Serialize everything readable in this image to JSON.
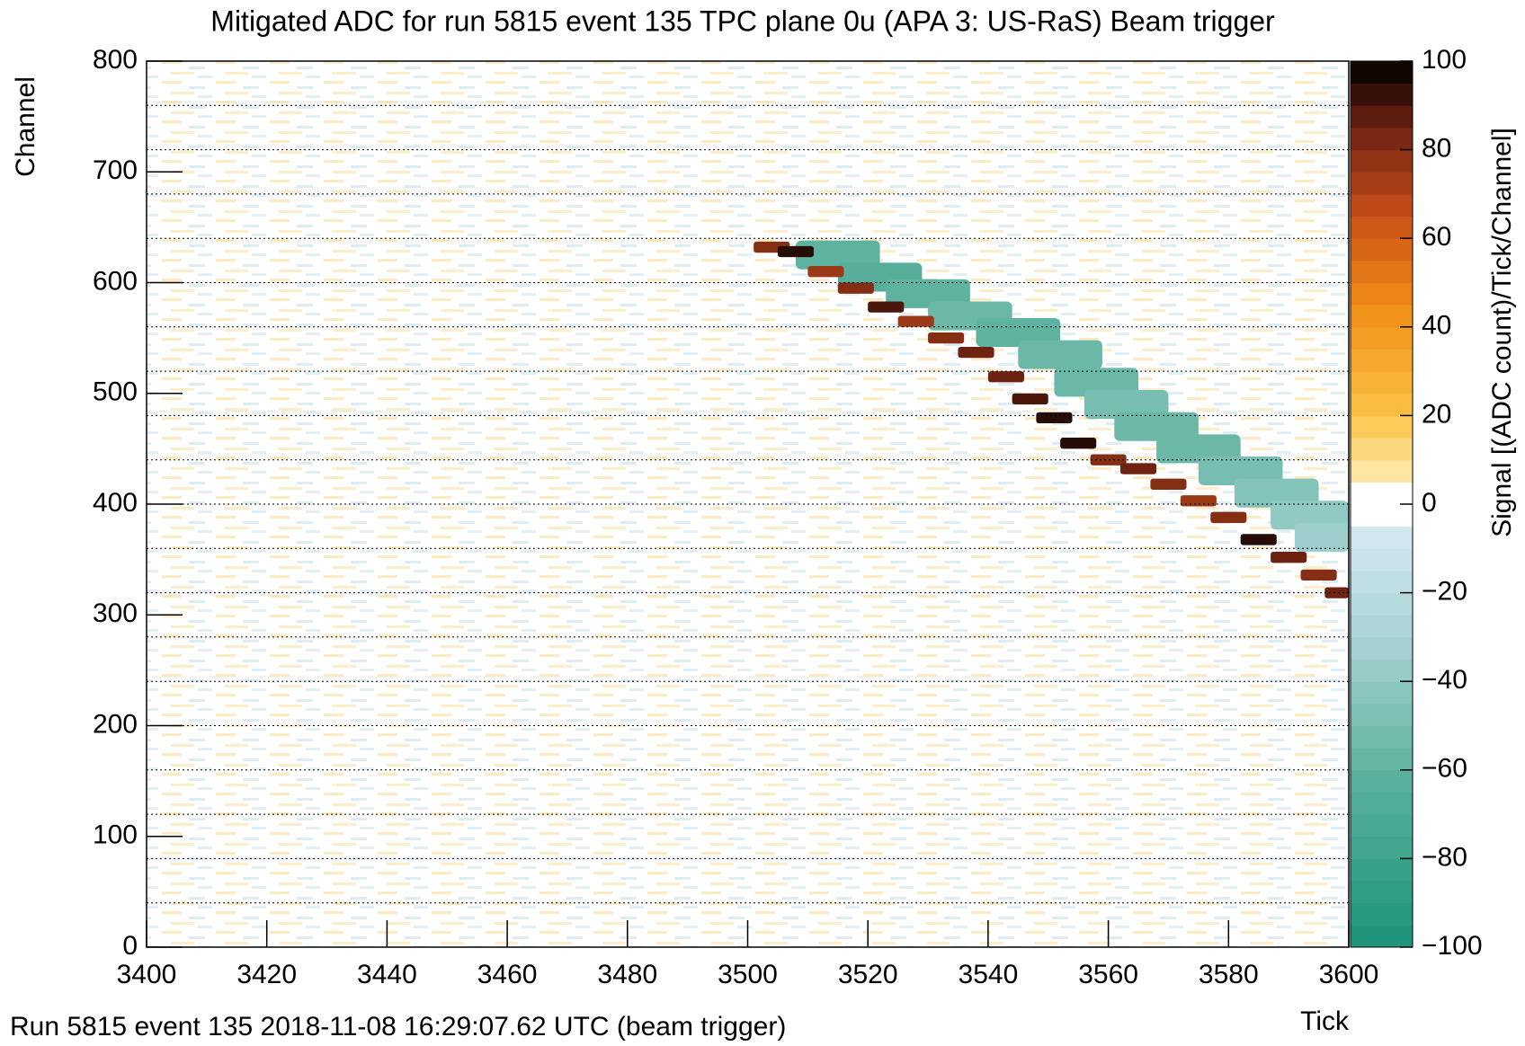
{
  "chart_data": {
    "type": "heatmap",
    "title": "Mitigated ADC for run 5815 event 135 TPC plane 0u (APA 3: US-RaS) Beam trigger",
    "xlabel": "Tick",
    "ylabel": "Channel",
    "zlabel": "Signal [(ADC count)/Tick/Channel]",
    "footer": "Run 5815 event 135 2018-11-08 16:29:07.62 UTC (beam trigger)",
    "xlim": [
      3400,
      3600
    ],
    "xticks": [
      3400,
      3420,
      3440,
      3460,
      3480,
      3500,
      3520,
      3540,
      3560,
      3580,
      3600
    ],
    "ylim": [
      0,
      800
    ],
    "yticks": [
      0,
      100,
      200,
      300,
      400,
      500,
      600,
      700,
      800
    ],
    "ygrid": [
      40,
      80,
      120,
      160,
      200,
      240,
      280,
      320,
      360,
      400,
      440,
      480,
      520,
      560,
      600,
      640,
      680,
      720,
      760
    ],
    "zlim": [
      -100,
      100
    ],
    "zticks": [
      {
        "value": -100,
        "label": "−100"
      },
      {
        "value": -80,
        "label": "−80"
      },
      {
        "value": -60,
        "label": "−60"
      },
      {
        "value": -40,
        "label": "−40"
      },
      {
        "value": -20,
        "label": "−20"
      },
      0,
      20,
      40,
      60,
      80,
      100
    ],
    "cells": {
      "x": [
        3515,
        3522,
        3530,
        3537,
        3545,
        3552,
        3558,
        3563,
        3568,
        3575,
        3582,
        3588,
        3594,
        3598,
        3504,
        3508,
        3513,
        3518,
        3523,
        3528,
        3533,
        3538,
        3543,
        3547,
        3551,
        3555,
        3560,
        3565,
        3570,
        3575,
        3580,
        3585,
        3590,
        3595,
        3599
      ],
      "y": [
        625,
        605,
        590,
        570,
        555,
        535,
        510,
        490,
        470,
        450,
        430,
        410,
        390,
        370,
        632,
        628,
        610,
        595,
        578,
        565,
        550,
        537,
        515,
        495,
        478,
        455,
        440,
        432,
        418,
        403,
        388,
        368,
        352,
        336,
        320
      ],
      "values": [
        -60,
        -65,
        -60,
        -55,
        -60,
        -55,
        -55,
        -50,
        -55,
        -55,
        -50,
        -45,
        -40,
        -35,
        80,
        95,
        75,
        80,
        90,
        75,
        80,
        85,
        85,
        90,
        95,
        95,
        80,
        85,
        80,
        75,
        80,
        95,
        85,
        80,
        85
      ]
    }
  }
}
